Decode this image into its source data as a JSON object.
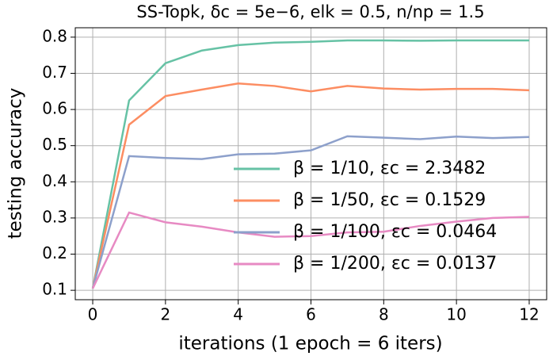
{
  "chart_data": {
    "type": "line",
    "title": "SS-Topk, δc = 5e−6, elk = 0.5, n/np = 1.5",
    "x_label": "iterations (1 epoch = 6 iters)",
    "y_label": "testing accuracy",
    "x": [
      0,
      1,
      2,
      3,
      4,
      5,
      6,
      7,
      8,
      9,
      10,
      11,
      12
    ],
    "series": [
      {
        "name": "β = 1/10, εc = 2.3482",
        "color": "#66c2a5",
        "values": [
          0.105,
          0.625,
          0.728,
          0.763,
          0.778,
          0.785,
          0.787,
          0.791,
          0.791,
          0.79,
          0.791,
          0.791,
          0.791
        ]
      },
      {
        "name": "β = 1/50, εc = 0.1529",
        "color": "#fc8d62",
        "values": [
          0.105,
          0.558,
          0.637,
          0.655,
          0.672,
          0.665,
          0.65,
          0.665,
          0.658,
          0.655,
          0.657,
          0.657,
          0.653
        ]
      },
      {
        "name": "β = 1/100, εc = 0.0464",
        "color": "#8da0cb",
        "values": [
          0.105,
          0.471,
          0.466,
          0.463,
          0.476,
          0.478,
          0.487,
          0.526,
          0.522,
          0.518,
          0.525,
          0.521,
          0.524
        ]
      },
      {
        "name": "β = 1/200, εc = 0.0137",
        "color": "#e78ac3",
        "values": [
          0.105,
          0.315,
          0.288,
          0.276,
          0.26,
          0.248,
          0.25,
          0.26,
          0.262,
          0.278,
          0.29,
          0.3,
          0.303
        ]
      }
    ],
    "xlim": [
      -0.48,
      12.48
    ],
    "xticks": [
      0,
      2,
      4,
      6,
      8,
      10,
      12
    ],
    "ylim": [
      0.074,
      0.826
    ],
    "yticks": [
      0.1,
      0.2,
      0.3,
      0.4,
      0.5,
      0.6,
      0.7,
      0.8
    ],
    "grid": true,
    "legend": "lower right"
  }
}
